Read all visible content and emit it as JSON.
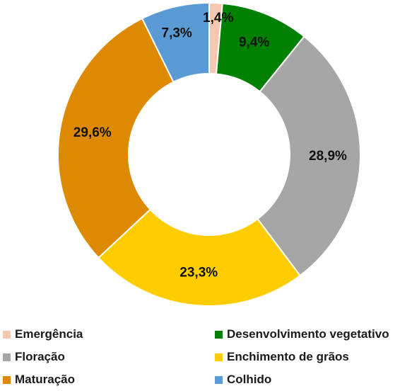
{
  "chart_data": {
    "type": "pie",
    "variant": "donut",
    "categories": [
      "Emergência",
      "Desenvolvimento vegetativo",
      "Floração",
      "Enchimento de grãos",
      "Maturação",
      "Colhido"
    ],
    "values": [
      1.4,
      9.4,
      28.9,
      23.3,
      29.6,
      7.3
    ],
    "labels": [
      "1,4%",
      "9,4%",
      "28,9%",
      "23,3%",
      "29,6%",
      "7,3%"
    ],
    "colors": [
      "#F4C7B0",
      "#008000",
      "#A6A6A6",
      "#FFCC00",
      "#DE8A00",
      "#5B9BD5"
    ],
    "unit": "%",
    "legend_position": "bottom"
  }
}
